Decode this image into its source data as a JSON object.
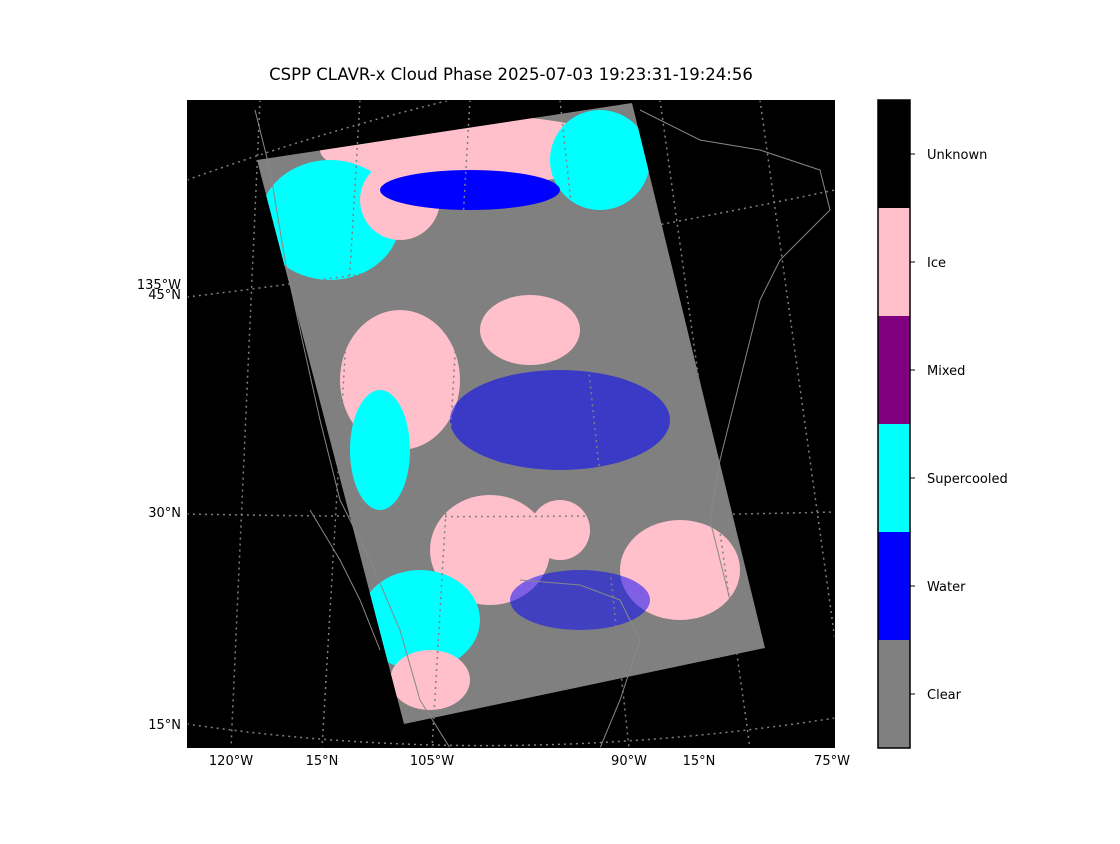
{
  "title": "CSPP CLAVR-x Cloud Phase 2025-07-03 19:23:31-19:24:56",
  "left_labels": [
    "135°W",
    "45°N",
    "30°N",
    "15°N"
  ],
  "bottom_labels": [
    "120°W",
    "15°N",
    "105°W",
    "90°W",
    "15°N",
    "75°W"
  ],
  "colorbar": {
    "classes": [
      {
        "label": "Clear",
        "color": "#808080"
      },
      {
        "label": "Water",
        "color": "#0000ff"
      },
      {
        "label": "Supercooled",
        "color": "#00ffff"
      },
      {
        "label": "Mixed",
        "color": "#800080"
      },
      {
        "label": "Ice",
        "color": "#ffc0cb"
      },
      {
        "label": "Unknown",
        "color": "#000000"
      }
    ]
  }
}
